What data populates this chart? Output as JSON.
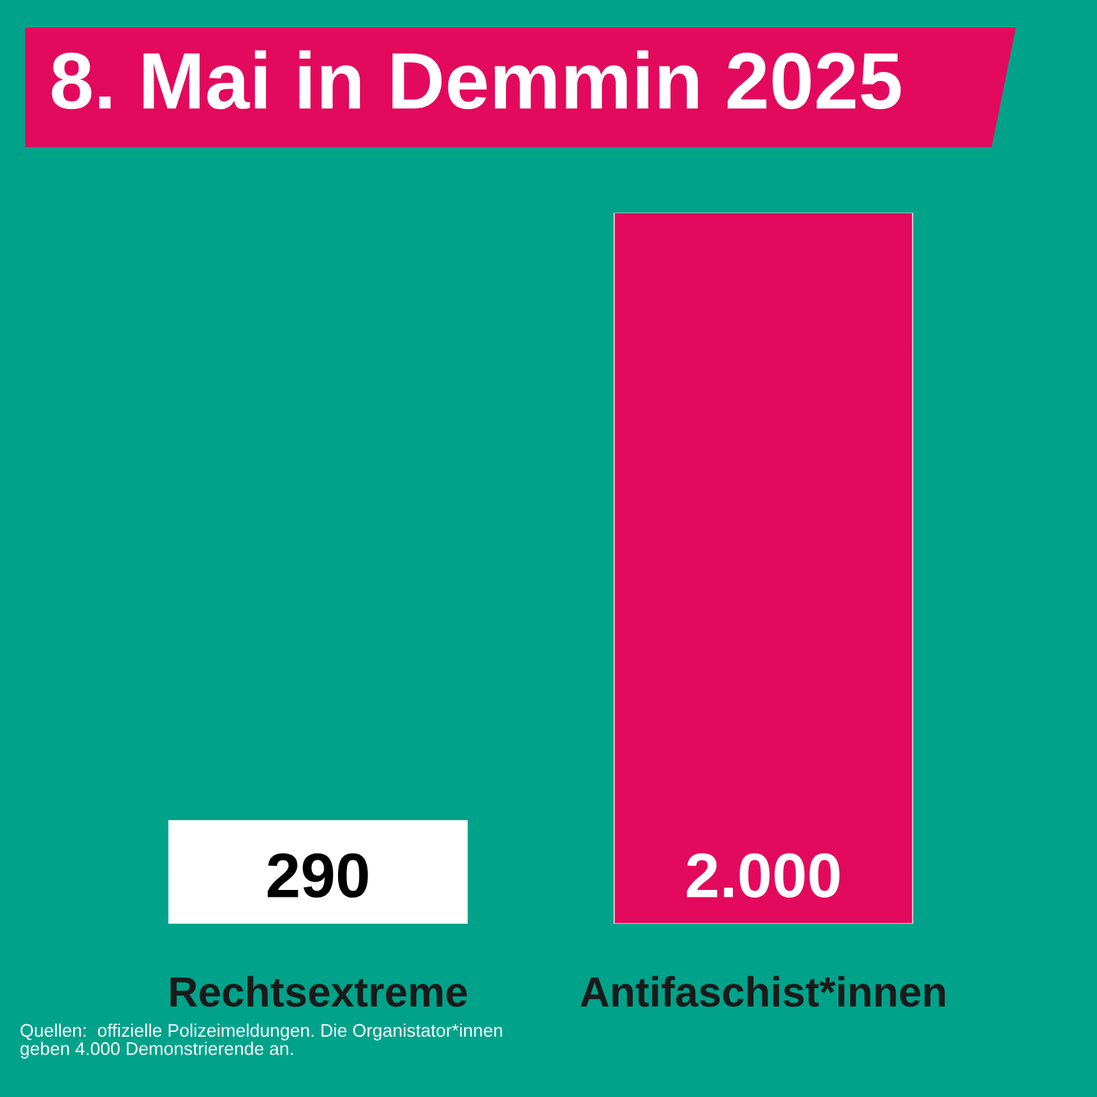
{
  "chart_data": {
    "type": "bar",
    "title": "8. Mai in Demmin 2025",
    "categories": [
      "Rechtsextreme",
      "Antifaschist*innen"
    ],
    "values": [
      290,
      2000
    ],
    "colors": [
      "#ffffff",
      "#e3095d"
    ],
    "value_labels": [
      "290",
      "2.000"
    ],
    "annotations": [
      "Quellen:  offizielle Polizeimeldungen. Die Organistator*innen\ngeben 4.000 Demonstrierende an."
    ],
    "grid": false,
    "legend": false
  }
}
